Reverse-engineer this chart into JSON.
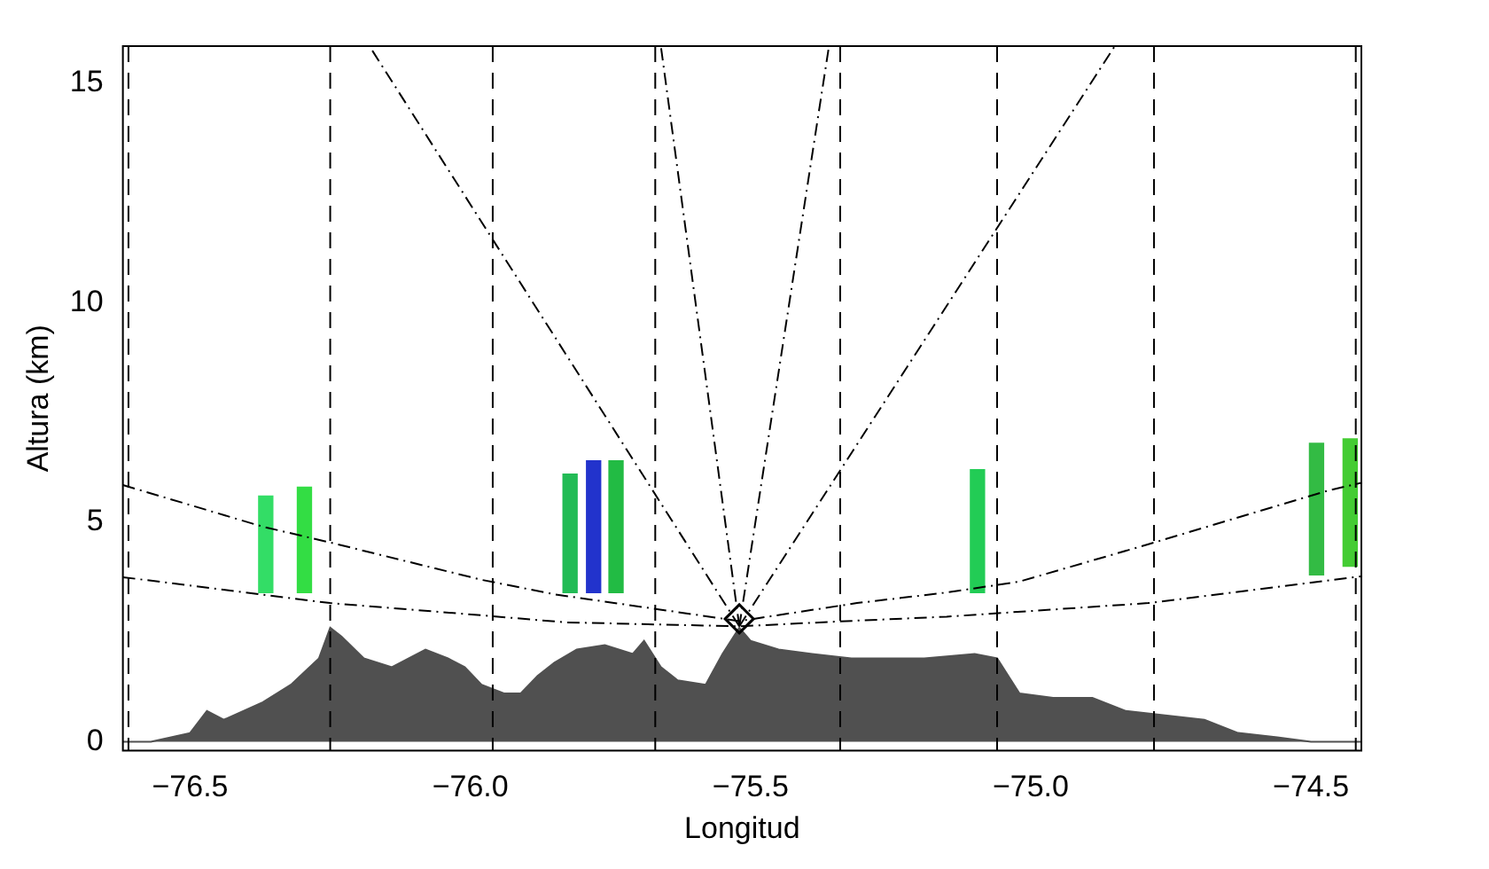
{
  "chart_data": {
    "type": "area",
    "xlabel": "Longitud",
    "ylabel": "Altura (km)",
    "xlim": [
      -76.62,
      -74.41
    ],
    "ylim": [
      -0.2,
      15.85
    ],
    "xticks": [
      {
        "value": -76.5,
        "label": "−76.5"
      },
      {
        "value": -76,
        "label": "−76.0"
      },
      {
        "value": -75.5,
        "label": "−75.5"
      },
      {
        "value": -75,
        "label": "−75.0"
      },
      {
        "value": -74.5,
        "label": "−74.5"
      }
    ],
    "yticks": [
      0,
      5,
      10,
      15
    ],
    "grid": false,
    "legend": false,
    "series": [
      {
        "color": "#505050",
        "x": [
          -76.62,
          -76.57,
          -76.5,
          -76.47,
          -76.44,
          -76.37,
          -76.32,
          -76.27,
          -76.25,
          -76.23,
          -76.19,
          -76.14,
          -76.08,
          -76.04,
          -76.01,
          -75.98,
          -75.94,
          -75.91,
          -75.88,
          -75.85,
          -75.81,
          -75.76,
          -75.71,
          -75.69,
          -75.66,
          -75.63,
          -75.58,
          -75.55,
          -75.52,
          -75.5,
          -75.45,
          -75.39,
          -75.32,
          -75.25,
          -75.19,
          -75.1,
          -75.06,
          -75.02,
          -74.96,
          -74.89,
          -74.83,
          -74.76,
          -74.69,
          -74.63,
          -74.56,
          -74.5,
          -74.41
        ],
        "values": [
          0,
          0,
          0.2,
          0.7,
          0.5,
          0.9,
          1.3,
          1.9,
          2.6,
          2.4,
          1.9,
          1.7,
          2.1,
          1.9,
          1.7,
          1.3,
          1.1,
          1.1,
          1.5,
          1.8,
          2.1,
          2.2,
          2,
          2.3,
          1.7,
          1.4,
          1.3,
          2,
          2.6,
          2.3,
          2.1,
          2,
          1.9,
          1.9,
          1.9,
          2,
          1.9,
          1.1,
          1,
          1,
          0.7,
          0.6,
          0.5,
          0.2,
          0.1,
          0,
          0
        ]
      },
      {
        "type": "line",
        "color": "#000000",
        "line_style": "dashed",
        "x": [
          -76.62,
          -76.37,
          -76.25,
          -75.98,
          -75.85,
          -75.52,
          -75.31,
          -75.15,
          -75.02,
          -74.79,
          -74.47,
          -74.41
        ],
        "values": [
          5.85,
          4.9,
          4.54,
          3.69,
          3.36,
          2.75,
          3.16,
          3.4,
          3.65,
          4.5,
          5.72,
          5.9
        ]
      },
      {
        "type": "line",
        "color": "#000000",
        "line_style": "dashed",
        "x": [
          -76.62,
          -76.25,
          -75.98,
          -75.83,
          -75.52,
          -75.31,
          -75.15,
          -74.79,
          -74.41
        ],
        "values": [
          3.75,
          3.16,
          2.88,
          2.72,
          2.63,
          2.76,
          2.85,
          3.16,
          3.77
        ]
      },
      {
        "type": "line",
        "color": "#000000",
        "line_style": "dashed",
        "x": [
          -75.52,
          -76.18
        ],
        "values": [
          2.63,
          15.85
        ]
      },
      {
        "type": "line",
        "color": "#000000",
        "line_style": "dashed",
        "x": [
          -75.52,
          -75.66
        ],
        "values": [
          2.63,
          15.85
        ]
      },
      {
        "type": "line",
        "color": "#000000",
        "line_style": "dashed",
        "x": [
          -75.52,
          -75.36
        ],
        "values": [
          2.63,
          15.85
        ]
      },
      {
        "type": "line",
        "color": "#000000",
        "line_style": "dashed",
        "x": [
          -75.52,
          -74.85
        ],
        "values": [
          2.63,
          15.85
        ]
      },
      {
        "type": "bar",
        "x": [
          -76.365,
          -76.296,
          -75.822,
          -75.78,
          -75.74,
          -75.095,
          -74.49,
          -74.43
        ],
        "base": [
          3.4,
          3.4,
          3.4,
          3.4,
          3.4,
          3.4,
          3.8,
          4.0
        ],
        "values": [
          2.2,
          2.4,
          2.7,
          3.0,
          3.0,
          2.8,
          3.0,
          2.9
        ],
        "colors": [
          "#33dd66",
          "#33dd44",
          "#22bb55",
          "#2233cc",
          "#22bb44",
          "#22cc55",
          "#33bb44",
          "#44cc33"
        ]
      },
      {
        "type": "scatter",
        "color": "#000000",
        "marker": "diamond",
        "x": [
          -75.52
        ],
        "values": [
          2.8
        ]
      }
    ],
    "ref_lines": [
      {
        "axis": "x",
        "value": -76.61,
        "line_style": "dashed"
      },
      {
        "axis": "x",
        "value": -76.25,
        "line_style": "dashed"
      },
      {
        "axis": "x",
        "value": -75.96,
        "line_style": "dashed"
      },
      {
        "axis": "x",
        "value": -75.67,
        "line_style": "dashed"
      },
      {
        "axis": "x",
        "value": -75.34,
        "line_style": "dashed"
      },
      {
        "axis": "x",
        "value": -75.06,
        "line_style": "dashed"
      },
      {
        "axis": "x",
        "value": -74.78,
        "line_style": "dashed"
      },
      {
        "axis": "x",
        "value": -74.42,
        "line_style": "dashed"
      }
    ]
  }
}
